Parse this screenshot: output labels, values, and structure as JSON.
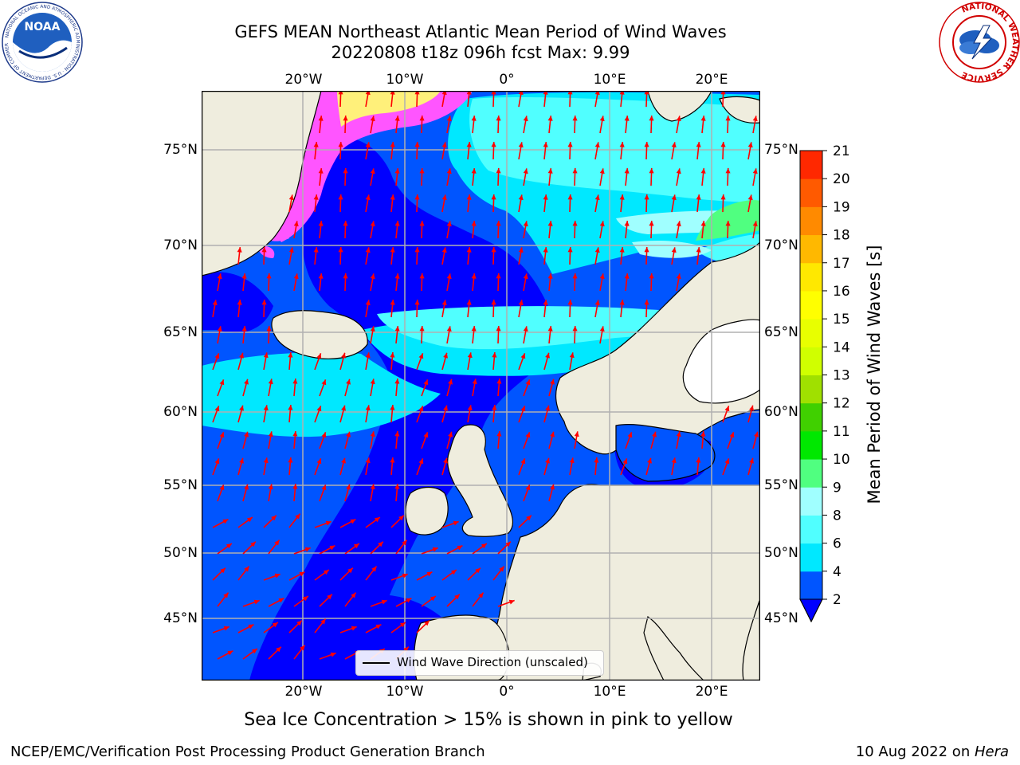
{
  "header": {
    "title_line1": "GEFS MEAN Northeast Atlantic Mean Period of Wind Waves",
    "title_line2": "20220808 t18z 096h fcst   Max: 9.99"
  },
  "logos": {
    "noaa_text": "NOAA",
    "noaa_ring": "NATIONAL OCEANIC AND ATMOSPHERIC ADMINISTRATION · U.S. DEPARTMENT OF COMMERCE",
    "nws_ring": "NATIONAL WEATHER SERVICE"
  },
  "map": {
    "lon_labels": [
      "20°W",
      "10°W",
      "0°",
      "10°E",
      "20°E"
    ],
    "lat_labels": [
      "75°N",
      "70°N",
      "65°N",
      "60°N",
      "55°N",
      "50°N",
      "45°N"
    ],
    "legend_label": "Wind Wave Direction (unscaled)",
    "colors": {
      "land": "#efedde",
      "lake": "#ffffff",
      "arrow": "#ff0000",
      "gridline": "#b0b0b0",
      "ice_pink": "#ff55ff",
      "ice_yellow": "#fff07a"
    }
  },
  "colorbar": {
    "label": "Mean Period of Wind Waves [s]",
    "ticks": [
      "2",
      "4",
      "6",
      "8",
      "9",
      "10",
      "11",
      "12",
      "13",
      "14",
      "15",
      "16",
      "17",
      "18",
      "19",
      "20",
      "21"
    ],
    "colors": [
      "#0055ff",
      "#00e8ff",
      "#50ffff",
      "#a0ffff",
      "#50ff80",
      "#00e800",
      "#40d000",
      "#a0e000",
      "#d0ff00",
      "#e8ff00",
      "#ffff00",
      "#ffe800",
      "#ffb800",
      "#ff8a00",
      "#ff5a00",
      "#ff2800"
    ],
    "under_color": "#0000ff"
  },
  "footer": {
    "subtitle": "Sea Ice Concentration > 15% is shown in pink to yellow",
    "left": "NCEP/EMC/Verification Post Processing Product Generation Branch",
    "right_prefix": "10 Aug 2022 on ",
    "right_host": "Hera"
  }
}
